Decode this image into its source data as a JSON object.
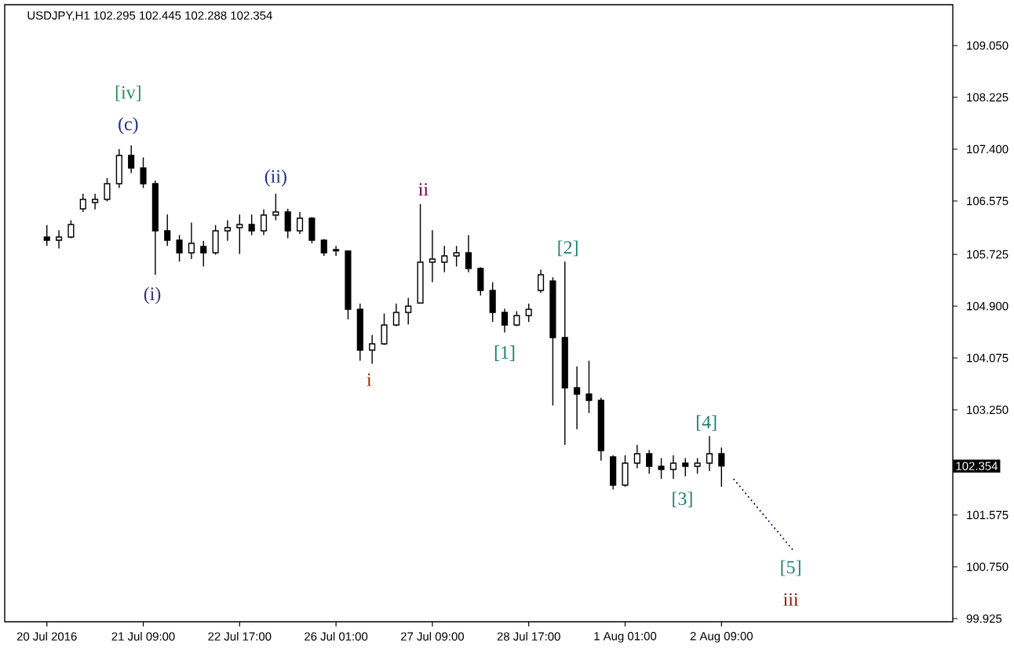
{
  "chart_data": {
    "type": "candlestick",
    "title": "USDJPY,H1  102.295 102.445 102.288 102.354",
    "categories": [
      "20 Jul 2016",
      null,
      null,
      null,
      null,
      null,
      null,
      null,
      "21 Jul 09:00",
      null,
      null,
      null,
      null,
      null,
      null,
      null,
      "22 Jul 17:00",
      null,
      null,
      null,
      null,
      null,
      null,
      null,
      "26 Jul 01:00",
      null,
      null,
      null,
      null,
      null,
      null,
      null,
      "27 Jul 09:00",
      null,
      null,
      null,
      null,
      null,
      null,
      null,
      "28 Jul 17:00",
      null,
      null,
      null,
      null,
      null,
      null,
      null,
      "1 Aug 01:00",
      null,
      null,
      null,
      null,
      null,
      null,
      null,
      "2 Aug 09:00",
      null,
      null,
      null,
      null,
      null,
      null,
      null,
      null,
      null,
      null,
      null,
      null,
      null,
      null,
      null,
      null,
      null,
      null,
      null
    ],
    "ylim": [
      99.875,
      109.7
    ],
    "yticks": [
      {
        "value": 99.925,
        "label": "99.925"
      },
      {
        "value": 100.75,
        "label": "100.750"
      },
      {
        "value": 101.575,
        "label": "101.575"
      },
      {
        "value": 103.25,
        "label": "103.250"
      },
      {
        "value": 104.075,
        "label": "104.075"
      },
      {
        "value": 104.9,
        "label": "104.900"
      },
      {
        "value": 105.725,
        "label": "105.725"
      },
      {
        "value": 106.575,
        "label": "106.575"
      },
      {
        "value": 107.4,
        "label": "107.400"
      },
      {
        "value": 108.225,
        "label": "108.225"
      },
      {
        "value": 109.05,
        "label": "109.050"
      }
    ],
    "series": [
      {
        "color": "#000000",
        "ohlc": [
          [
            106.0,
            106.19,
            105.86,
            105.95
          ],
          [
            105.95,
            106.11,
            105.82,
            106.0
          ],
          [
            106.0,
            106.27,
            105.98,
            106.2
          ],
          [
            106.45,
            106.69,
            106.4,
            106.6
          ],
          [
            106.55,
            106.69,
            106.44,
            106.6
          ],
          [
            106.6,
            106.94,
            106.57,
            106.85
          ],
          [
            106.85,
            107.4,
            106.78,
            107.3
          ],
          [
            107.3,
            107.46,
            107.02,
            107.1
          ],
          [
            107.1,
            107.27,
            106.78,
            106.85
          ],
          [
            106.85,
            106.9,
            105.4,
            106.1
          ],
          [
            106.1,
            106.36,
            105.86,
            105.95
          ],
          [
            105.95,
            106.03,
            105.61,
            105.75
          ],
          [
            105.75,
            106.23,
            105.65,
            105.9
          ],
          [
            105.85,
            105.94,
            105.53,
            105.75
          ],
          [
            105.75,
            106.19,
            105.72,
            106.1
          ],
          [
            106.1,
            106.27,
            105.94,
            106.15
          ],
          [
            106.15,
            106.36,
            105.73,
            106.2
          ],
          [
            106.2,
            106.36,
            106.03,
            106.1
          ],
          [
            106.1,
            106.44,
            106.03,
            106.35
          ],
          [
            106.35,
            106.69,
            106.27,
            106.4
          ],
          [
            106.4,
            106.45,
            105.98,
            106.1
          ],
          [
            106.1,
            106.4,
            106.05,
            106.3
          ],
          [
            106.3,
            106.32,
            105.9,
            105.95
          ],
          [
            105.95,
            105.97,
            105.7,
            105.75
          ],
          [
            105.8,
            105.86,
            105.7,
            105.78
          ],
          [
            105.78,
            105.78,
            104.69,
            104.85
          ],
          [
            104.85,
            104.94,
            104.03,
            104.2
          ],
          [
            104.2,
            104.44,
            103.98,
            104.3
          ],
          [
            104.3,
            104.78,
            104.28,
            104.6
          ],
          [
            104.6,
            104.94,
            104.58,
            104.8
          ],
          [
            104.8,
            105.03,
            104.61,
            104.9
          ],
          [
            104.95,
            106.525,
            104.94,
            105.6
          ],
          [
            105.6,
            106.11,
            105.28,
            105.65
          ],
          [
            105.6,
            105.86,
            105.44,
            105.7
          ],
          [
            105.7,
            105.86,
            105.53,
            105.75
          ],
          [
            105.75,
            106.03,
            105.44,
            105.5
          ],
          [
            105.5,
            105.52,
            105.07,
            105.15
          ],
          [
            105.15,
            105.28,
            104.65,
            104.8
          ],
          [
            104.8,
            104.86,
            104.48,
            104.6
          ],
          [
            104.6,
            104.82,
            104.58,
            104.75
          ],
          [
            104.75,
            104.94,
            104.65,
            104.85
          ],
          [
            105.15,
            105.48,
            105.11,
            105.4
          ],
          [
            105.3,
            105.36,
            103.32,
            104.4
          ],
          [
            104.4,
            105.61,
            102.69,
            103.6
          ],
          [
            103.6,
            103.94,
            102.94,
            103.5
          ],
          [
            103.5,
            104.03,
            103.2,
            103.4
          ],
          [
            103.4,
            103.44,
            102.44,
            102.6
          ],
          [
            102.5,
            102.525,
            101.98,
            102.05
          ],
          [
            102.05,
            102.525,
            102.025,
            102.4
          ],
          [
            102.4,
            102.69,
            102.32,
            102.55
          ],
          [
            102.55,
            102.61,
            102.23,
            102.35
          ],
          [
            102.35,
            102.48,
            102.15,
            102.3
          ],
          [
            102.3,
            102.525,
            102.15,
            102.4
          ],
          [
            102.4,
            102.48,
            102.19,
            102.35
          ],
          [
            102.35,
            102.48,
            102.23,
            102.4
          ],
          [
            102.4,
            102.83,
            102.275,
            102.55
          ],
          [
            102.55,
            102.65,
            102.025,
            102.354
          ],
          null,
          null,
          null,
          null,
          null,
          null,
          null,
          null,
          null,
          null,
          null,
          null,
          null,
          null,
          null,
          null,
          null,
          null,
          null
        ]
      },
      {
        "type": "line",
        "color": "#000080",
        "line_style": "dotted",
        "values": [
          null,
          null,
          null,
          null,
          null,
          null,
          null,
          null,
          null,
          null,
          null,
          null,
          null,
          null,
          null,
          null,
          null,
          null,
          null,
          null,
          null,
          null,
          null,
          null,
          null,
          null,
          null,
          null,
          null,
          null,
          null,
          null,
          null,
          null,
          null,
          null,
          null,
          null,
          null,
          null,
          null,
          null,
          null,
          null,
          null,
          null,
          null,
          null,
          null,
          null,
          null,
          null,
          null,
          null,
          null,
          null,
          null,
          102.15,
          null,
          null,
          null,
          null,
          101.0,
          null,
          null,
          null,
          null,
          null,
          null,
          null,
          null,
          null,
          null,
          null,
          null,
          null
        ]
      }
    ],
    "annotations": [
      "[iv]",
      "(c)",
      "(i)",
      "(ii)",
      "i",
      "ii",
      "[1]",
      "[2]",
      "[3]",
      "[4]",
      "[5]",
      "iii",
      "102.354"
    ]
  }
}
